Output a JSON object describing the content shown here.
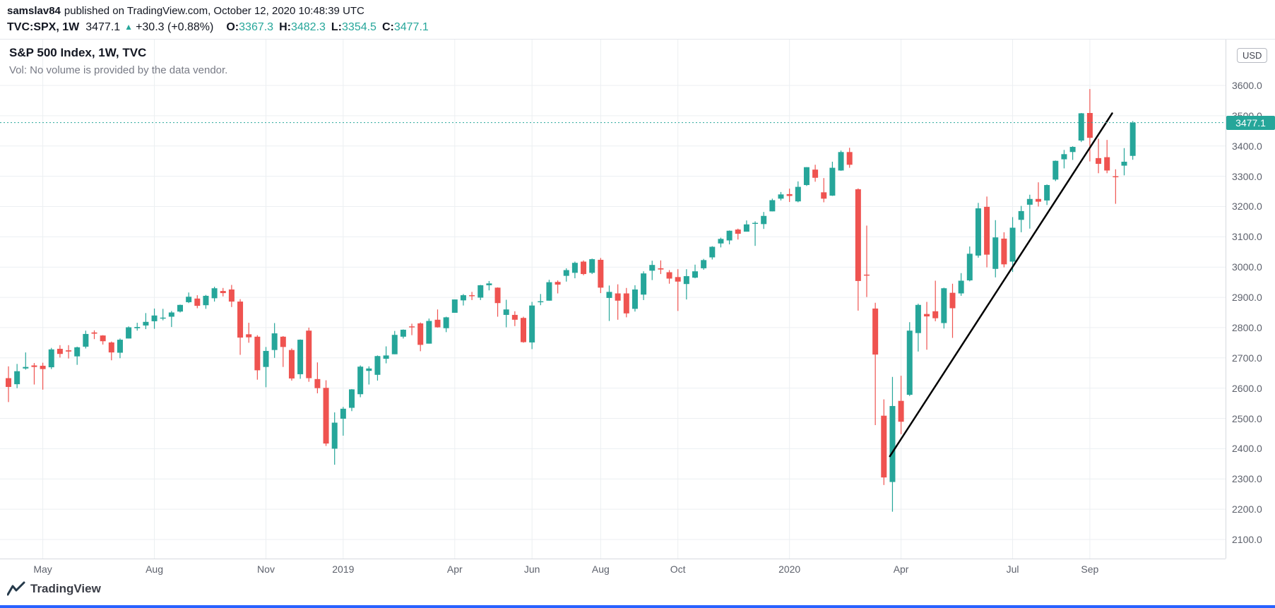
{
  "header": {
    "author": "samslav84",
    "published_text": "published on TradingView.com, October 12, 2020 10:48:39 UTC",
    "symbol_text": "TVC:SPX, 1W",
    "last_price": "3477.1",
    "change_arrow": "▲",
    "change_text": "+30.3 (+0.88%)",
    "ohlc": [
      {
        "label": "O:",
        "value": "3367.3"
      },
      {
        "label": "H:",
        "value": "3482.3"
      },
      {
        "label": "L:",
        "value": "3354.5"
      },
      {
        "label": "C:",
        "value": "3477.1"
      }
    ]
  },
  "legend": {
    "title": "S&P 500 Index, 1W, TVC",
    "subtitle": "Vol: No volume is provided by the data vendor."
  },
  "price_axis": {
    "unit_button": "USD",
    "current_price_label": "3477.1"
  },
  "footer": {
    "brand": "TradingView"
  },
  "colors": {
    "up": "#26a69a",
    "down": "#ef5350",
    "grid": "#eceff2",
    "axis_text": "#5d616c",
    "badge_bg": "#26a69a",
    "trendline": "#000000",
    "accent_strip": "#2962ff"
  },
  "chart_data": {
    "type": "candlestick",
    "title": "S&P 500 Index, 1W, TVC",
    "symbol": "TVC:SPX",
    "interval": "1W",
    "unit": "USD",
    "start_week": "2018-04-02",
    "up_color": "#26a69a",
    "down_color": "#ef5350",
    "price_axis": {
      "min": 2100,
      "max": 3600,
      "tick_step": 100
    },
    "last_price": 3477.1,
    "time_labels": [
      {
        "text": "May",
        "index": 4
      },
      {
        "text": "Aug",
        "index": 17
      },
      {
        "text": "Nov",
        "index": 30
      },
      {
        "text": "2019",
        "index": 39
      },
      {
        "text": "Apr",
        "index": 52
      },
      {
        "text": "Jun",
        "index": 61
      },
      {
        "text": "Aug",
        "index": 69
      },
      {
        "text": "Oct",
        "index": 78
      },
      {
        "text": "2020",
        "index": 91
      },
      {
        "text": "Apr",
        "index": 104
      },
      {
        "text": "Jul",
        "index": 117
      },
      {
        "text": "Sep",
        "index": 126
      }
    ],
    "trendline": {
      "from_index": 102.7,
      "from_price": 2375,
      "to_index": 128.6,
      "to_price": 3508,
      "color": "#000000"
    },
    "candles": [
      [
        2633,
        2672,
        2554,
        2604
      ],
      [
        2613,
        2680,
        2600,
        2656
      ],
      [
        2665,
        2718,
        2661,
        2670
      ],
      [
        2675,
        2683,
        2612,
        2670
      ],
      [
        2674,
        2684,
        2595,
        2663
      ],
      [
        2669,
        2733,
        2663,
        2728
      ],
      [
        2730,
        2742,
        2701,
        2713
      ],
      [
        2725,
        2742,
        2698,
        2721
      ],
      [
        2705,
        2737,
        2677,
        2735
      ],
      [
        2737,
        2790,
        2731,
        2779
      ],
      [
        2784,
        2791,
        2762,
        2780
      ],
      [
        2774,
        2775,
        2744,
        2755
      ],
      [
        2751,
        2754,
        2692,
        2718
      ],
      [
        2717,
        2764,
        2699,
        2760
      ],
      [
        2764,
        2804,
        2764,
        2801
      ],
      [
        2798,
        2816,
        2790,
        2802
      ],
      [
        2807,
        2848,
        2795,
        2819
      ],
      [
        2821,
        2863,
        2796,
        2840
      ],
      [
        2831,
        2862,
        2824,
        2833
      ],
      [
        2836,
        2855,
        2802,
        2850
      ],
      [
        2853,
        2876,
        2850,
        2875
      ],
      [
        2884,
        2916,
        2881,
        2902
      ],
      [
        2896,
        2907,
        2864,
        2872
      ],
      [
        2874,
        2908,
        2862,
        2905
      ],
      [
        2897,
        2935,
        2886,
        2930
      ],
      [
        2921,
        2931,
        2903,
        2914
      ],
      [
        2926,
        2941,
        2868,
        2886
      ],
      [
        2886,
        2894,
        2710,
        2767
      ],
      [
        2778,
        2816,
        2750,
        2768
      ],
      [
        2770,
        2775,
        2628,
        2659
      ],
      [
        2670,
        2736,
        2603,
        2723
      ],
      [
        2726,
        2815,
        2700,
        2781
      ],
      [
        2770,
        2772,
        2670,
        2736
      ],
      [
        2726,
        2731,
        2625,
        2632
      ],
      [
        2646,
        2761,
        2631,
        2760
      ],
      [
        2790,
        2800,
        2621,
        2633
      ],
      [
        2630,
        2685,
        2583,
        2600
      ],
      [
        2601,
        2626,
        2409,
        2417
      ],
      [
        2400,
        2520,
        2347,
        2486
      ],
      [
        2499,
        2538,
        2443,
        2532
      ],
      [
        2535,
        2597,
        2524,
        2596
      ],
      [
        2580,
        2675,
        2570,
        2671
      ],
      [
        2657,
        2672,
        2612,
        2665
      ],
      [
        2644,
        2708,
        2625,
        2706
      ],
      [
        2697,
        2738,
        2682,
        2708
      ],
      [
        2712,
        2789,
        2712,
        2776
      ],
      [
        2770,
        2794,
        2764,
        2793
      ],
      [
        2804,
        2813,
        2775,
        2803
      ],
      [
        2814,
        2817,
        2722,
        2743
      ],
      [
        2747,
        2830,
        2747,
        2822
      ],
      [
        2826,
        2860,
        2800,
        2801
      ],
      [
        2798,
        2836,
        2785,
        2834
      ],
      [
        2849,
        2893,
        2849,
        2893
      ],
      [
        2890,
        2911,
        2873,
        2907
      ],
      [
        2907,
        2918,
        2891,
        2905
      ],
      [
        2899,
        2941,
        2891,
        2940
      ],
      [
        2940,
        2954,
        2923,
        2946
      ],
      [
        2932,
        2933,
        2836,
        2881
      ],
      [
        2842,
        2892,
        2801,
        2860
      ],
      [
        2842,
        2854,
        2805,
        2826
      ],
      [
        2832,
        2836,
        2750,
        2752
      ],
      [
        2751,
        2885,
        2729,
        2873
      ],
      [
        2886,
        2911,
        2874,
        2887
      ],
      [
        2889,
        2958,
        2889,
        2950
      ],
      [
        2951,
        2956,
        2913,
        2942
      ],
      [
        2971,
        2996,
        2952,
        2990
      ],
      [
        2981,
        3018,
        2963,
        3014
      ],
      [
        3018,
        3022,
        2973,
        2977
      ],
      [
        2981,
        3028,
        2977,
        3026
      ],
      [
        3024,
        3030,
        2914,
        2932
      ],
      [
        2898,
        2939,
        2822,
        2918
      ],
      [
        2913,
        2943,
        2826,
        2889
      ],
      [
        2913,
        2931,
        2834,
        2847
      ],
      [
        2862,
        2940,
        2853,
        2926
      ],
      [
        2909,
        2986,
        2891,
        2979
      ],
      [
        2988,
        3021,
        2957,
        3007
      ],
      [
        2996,
        3022,
        2977,
        2992
      ],
      [
        2983,
        2990,
        2945,
        2962
      ],
      [
        2967,
        2993,
        2855,
        2952
      ],
      [
        2944,
        2993,
        2893,
        2970
      ],
      [
        2965,
        3008,
        2963,
        2986
      ],
      [
        2996,
        3027,
        2991,
        3023
      ],
      [
        3032,
        3069,
        3025,
        3067
      ],
      [
        3078,
        3097,
        3065,
        3093
      ],
      [
        3088,
        3121,
        3075,
        3120
      ],
      [
        3124,
        3127,
        3091,
        3110
      ],
      [
        3117,
        3154,
        3117,
        3141
      ],
      [
        3144,
        3151,
        3070,
        3146
      ],
      [
        3142,
        3182,
        3126,
        3169
      ],
      [
        3184,
        3226,
        3184,
        3221
      ],
      [
        3226,
        3248,
        3220,
        3240
      ],
      [
        3241,
        3259,
        3215,
        3235
      ],
      [
        3217,
        3283,
        3214,
        3265
      ],
      [
        3271,
        3330,
        3268,
        3330
      ],
      [
        3322,
        3338,
        3282,
        3295
      ],
      [
        3247,
        3294,
        3214,
        3226
      ],
      [
        3236,
        3348,
        3235,
        3328
      ],
      [
        3319,
        3385,
        3318,
        3380
      ],
      [
        3380,
        3394,
        3328,
        3338
      ],
      [
        3257,
        3260,
        2856,
        2954
      ],
      [
        2975,
        3137,
        2901,
        2972
      ],
      [
        2863,
        2882,
        2478,
        2711
      ],
      [
        2509,
        2563,
        2280,
        2305
      ],
      [
        2290,
        2637,
        2192,
        2541
      ],
      [
        2558,
        2641,
        2448,
        2489
      ],
      [
        2578,
        2818,
        2574,
        2790
      ],
      [
        2782,
        2879,
        2721,
        2875
      ],
      [
        2845,
        2885,
        2727,
        2837
      ],
      [
        2854,
        2955,
        2821,
        2831
      ],
      [
        2815,
        2932,
        2797,
        2930
      ],
      [
        2915,
        2945,
        2766,
        2864
      ],
      [
        2913,
        2980,
        2905,
        2955
      ],
      [
        2956,
        3068,
        2953,
        3044
      ],
      [
        3038,
        3212,
        3031,
        3194
      ],
      [
        3199,
        3233,
        2999,
        3041
      ],
      [
        2994,
        3155,
        2966,
        3098
      ],
      [
        3094,
        3115,
        2999,
        3009
      ],
      [
        3018,
        3165,
        2984,
        3130
      ],
      [
        3156,
        3202,
        3115,
        3185
      ],
      [
        3206,
        3239,
        3127,
        3225
      ],
      [
        3225,
        3280,
        3200,
        3216
      ],
      [
        3220,
        3273,
        3205,
        3271
      ],
      [
        3289,
        3352,
        3284,
        3351
      ],
      [
        3356,
        3387,
        3326,
        3373
      ],
      [
        3380,
        3399,
        3354,
        3397
      ],
      [
        3418,
        3509,
        3413,
        3508
      ],
      [
        3509,
        3588,
        3349,
        3427
      ],
      [
        3360,
        3424,
        3310,
        3341
      ],
      [
        3363,
        3420,
        3310,
        3319
      ],
      [
        3300,
        3323,
        3209,
        3298
      ],
      [
        3335,
        3393,
        3303,
        3348
      ],
      [
        3367.3,
        3482.3,
        3354.5,
        3477.1
      ]
    ]
  }
}
